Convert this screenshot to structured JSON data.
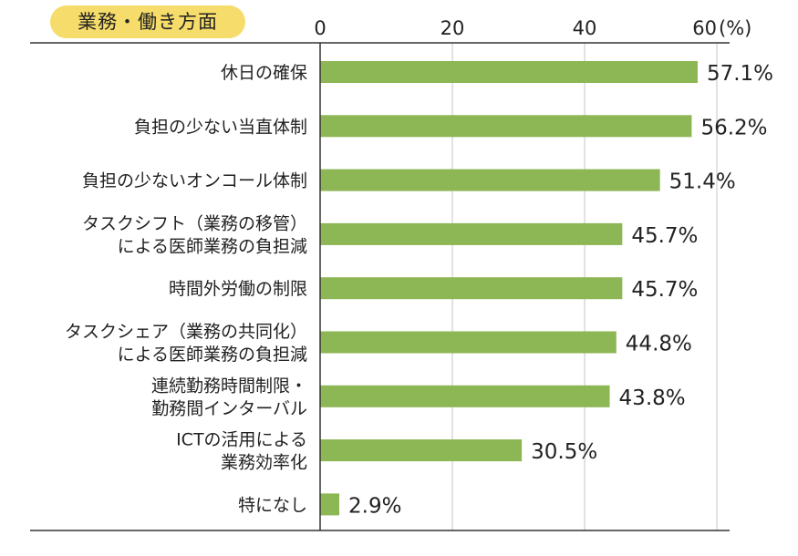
{
  "chart_data": {
    "type": "bar",
    "orientation": "horizontal",
    "title": "業務・働き方面",
    "unit_label": "(%)",
    "xlim": [
      0,
      60
    ],
    "xticks": [
      0,
      20,
      40,
      60
    ],
    "grid": true,
    "bar_color": "#8db654",
    "categories": [
      [
        "休日の確保"
      ],
      [
        "負担の少ない当直体制"
      ],
      [
        "負担の少ないオンコール体制"
      ],
      [
        "タスクシフト（業務の移管）",
        "による医師業務の負担減"
      ],
      [
        "時間外労働の制限"
      ],
      [
        "タスクシェア（業務の共同化）",
        "による医師業務の負担減"
      ],
      [
        "連続勤務時間制限・",
        "勤務間インターバル"
      ],
      [
        "ICTの活用による",
        "業務効率化"
      ],
      [
        "特になし"
      ]
    ],
    "values": [
      57.1,
      56.2,
      51.4,
      45.7,
      45.7,
      44.8,
      43.8,
      30.5,
      2.9
    ],
    "value_labels": [
      "57.1%",
      "56.2%",
      "51.4%",
      "45.7%",
      "45.7%",
      "44.8%",
      "43.8%",
      "30.5%",
      "2.9%"
    ]
  }
}
